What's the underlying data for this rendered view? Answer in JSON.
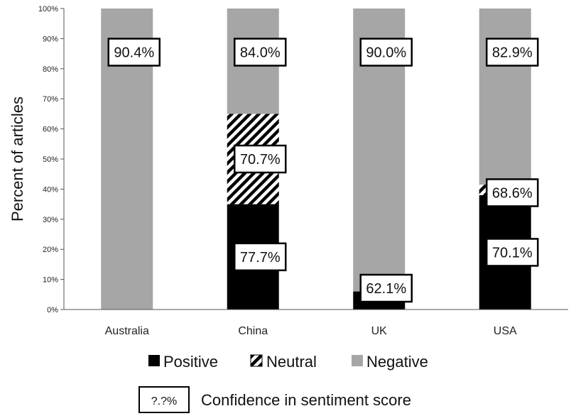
{
  "chart_data": {
    "type": "bar",
    "stacked": true,
    "ylabel": "Percent of articles",
    "ylim": [
      0,
      100
    ],
    "yticks": [
      "0%",
      "10%",
      "20%",
      "30%",
      "40%",
      "50%",
      "60%",
      "70%",
      "80%",
      "90%",
      "100%"
    ],
    "categories": [
      "Australia",
      "China",
      "UK",
      "USA"
    ],
    "series": [
      {
        "name": "Positive",
        "color": "#000000",
        "pattern": "solid",
        "values": [
          0,
          35,
          6,
          38
        ]
      },
      {
        "name": "Neutral",
        "color": "#ffffff",
        "pattern": "hatch",
        "values": [
          0,
          30,
          0,
          3.5
        ]
      },
      {
        "name": "Negative",
        "color": "#a6a6a6",
        "pattern": "solid",
        "values": [
          100,
          35,
          94,
          58.5
        ]
      }
    ],
    "confidence_labels": [
      {
        "category": "Australia",
        "series": "Negative",
        "text": "90.4%"
      },
      {
        "category": "China",
        "series": "Negative",
        "text": "84.0%"
      },
      {
        "category": "China",
        "series": "Neutral",
        "text": "70.7%"
      },
      {
        "category": "China",
        "series": "Positive",
        "text": "77.7%"
      },
      {
        "category": "UK",
        "series": "Negative",
        "text": "90.0%"
      },
      {
        "category": "UK",
        "series": "Positive",
        "text": "62.1%"
      },
      {
        "category": "USA",
        "series": "Negative",
        "text": "82.9%"
      },
      {
        "category": "USA",
        "series": "Neutral",
        "text": "68.6%"
      },
      {
        "category": "USA",
        "series": "Positive",
        "text": "70.1%"
      }
    ],
    "legend": {
      "placement": "bottom",
      "entries": [
        "Positive",
        "Neutral",
        "Negative"
      ]
    },
    "confidence_key": {
      "box_text": "?.?%",
      "label": "Confidence in sentiment score"
    }
  }
}
